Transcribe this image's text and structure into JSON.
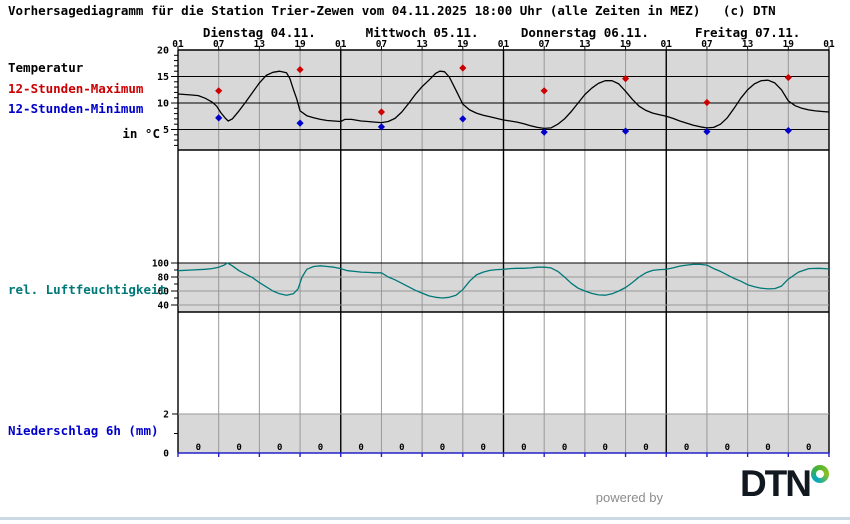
{
  "title": "Vorhersagediagramm für die Station Trier-Zewen vom 04.11.2025 18:00 Uhr (alle Zeiten in MEZ)   (c) DTN",
  "days": [
    "Dienstag 04.11.",
    "Mittwoch 05.11.",
    "Donnerstag 06.11.",
    "Freitag 07.11."
  ],
  "time_ticks": [
    "01",
    "07",
    "13",
    "19",
    "01",
    "07",
    "13",
    "19",
    "01",
    "07",
    "13",
    "19",
    "01",
    "07",
    "13",
    "19",
    "01"
  ],
  "panels": {
    "temperature": {
      "label": "Temperatur",
      "legend_max": "12-Stunden-Maximum",
      "legend_min": "12-Stunden-Minimum",
      "unit_label": "in °C",
      "yticks": [
        20,
        15,
        10,
        5
      ]
    },
    "humidity": {
      "label": "rel. Luftfeuchtigkeit",
      "yticks": [
        100,
        80,
        60,
        40
      ]
    },
    "precipitation": {
      "label": "Niederschlag 6h (mm)",
      "yticks": [
        2,
        0
      ]
    }
  },
  "footer": {
    "powered_by": "powered by",
    "logo_text": "DTN"
  },
  "colors": {
    "panel_bg": "#d8d8d8",
    "grid_gray": "#999999",
    "grid_black": "#000000",
    "temp_curve": "#000000",
    "max_marker": "#cc0000",
    "min_marker": "#0000cc",
    "humidity_curve": "#007878",
    "precip_axis": "#2222cc",
    "divider": "#ccd9e2"
  },
  "chart_data": {
    "type": "line",
    "x_axis": {
      "unit": "hours since Dienstag 01:00 MEZ",
      "range": [
        0,
        96
      ],
      "tick_step_hours": 6,
      "day_boundaries_hours": [
        0,
        24,
        48,
        72,
        96
      ]
    },
    "temperature": {
      "ylabel": "in °C",
      "ylim_labels": [
        20,
        5
      ],
      "series": [
        [
          0,
          11.7
        ],
        [
          2,
          11.5
        ],
        [
          3,
          11.4
        ],
        [
          4,
          10.9
        ],
        [
          5,
          10.2
        ],
        [
          5.7,
          9.4
        ],
        [
          6.3,
          8.2
        ],
        [
          7,
          7.1
        ],
        [
          7.4,
          6.6
        ],
        [
          8,
          7.0
        ],
        [
          9,
          8.5
        ],
        [
          10,
          10.2
        ],
        [
          11,
          12.0
        ],
        [
          12,
          13.8
        ],
        [
          13,
          15.2
        ],
        [
          14,
          15.8
        ],
        [
          15,
          16.0
        ],
        [
          16,
          15.7
        ],
        [
          16.5,
          14.6
        ],
        [
          17,
          12.6
        ],
        [
          17.5,
          10.8
        ],
        [
          18,
          8.5
        ],
        [
          19,
          7.6
        ],
        [
          20,
          7.2
        ],
        [
          21,
          6.9
        ],
        [
          22,
          6.7
        ],
        [
          23,
          6.6
        ],
        [
          24,
          6.5
        ],
        [
          24.6,
          6.9
        ],
        [
          25.6,
          6.9
        ],
        [
          27,
          6.6
        ],
        [
          28,
          6.5
        ],
        [
          29,
          6.4
        ],
        [
          30,
          6.3
        ],
        [
          31,
          6.5
        ],
        [
          32,
          7.1
        ],
        [
          33,
          8.3
        ],
        [
          34,
          9.9
        ],
        [
          35,
          11.6
        ],
        [
          36,
          13.1
        ],
        [
          37,
          14.3
        ],
        [
          38,
          15.6
        ],
        [
          38.6,
          16.0
        ],
        [
          39.3,
          15.9
        ],
        [
          40,
          14.9
        ],
        [
          41,
          12.4
        ],
        [
          42,
          9.8
        ],
        [
          43,
          8.7
        ],
        [
          44,
          8.1
        ],
        [
          45,
          7.7
        ],
        [
          46,
          7.4
        ],
        [
          47,
          7.1
        ],
        [
          48,
          6.8
        ],
        [
          49,
          6.6
        ],
        [
          50,
          6.4
        ],
        [
          51,
          6.1
        ],
        [
          52,
          5.7
        ],
        [
          53,
          5.4
        ],
        [
          54,
          5.2
        ],
        [
          55,
          5.3
        ],
        [
          56,
          6.0
        ],
        [
          57,
          7.0
        ],
        [
          58,
          8.4
        ],
        [
          59,
          10.0
        ],
        [
          60,
          11.6
        ],
        [
          61,
          12.8
        ],
        [
          62,
          13.7
        ],
        [
          63,
          14.2
        ],
        [
          64,
          14.2
        ],
        [
          65,
          13.6
        ],
        [
          66,
          12.2
        ],
        [
          67,
          10.7
        ],
        [
          68,
          9.4
        ],
        [
          69,
          8.6
        ],
        [
          70,
          8.1
        ],
        [
          71,
          7.8
        ],
        [
          72,
          7.5
        ],
        [
          73,
          7.1
        ],
        [
          74,
          6.6
        ],
        [
          75,
          6.2
        ],
        [
          76,
          5.8
        ],
        [
          77,
          5.5
        ],
        [
          78,
          5.3
        ],
        [
          79,
          5.4
        ],
        [
          80,
          6.0
        ],
        [
          81,
          7.2
        ],
        [
          82,
          9.0
        ],
        [
          83,
          10.9
        ],
        [
          84,
          12.5
        ],
        [
          85,
          13.6
        ],
        [
          86,
          14.2
        ],
        [
          87,
          14.3
        ],
        [
          88,
          13.8
        ],
        [
          89,
          12.5
        ],
        [
          90,
          10.4
        ],
        [
          91,
          9.5
        ],
        [
          92,
          9.0
        ],
        [
          93,
          8.7
        ],
        [
          94,
          8.5
        ],
        [
          95,
          8.4
        ],
        [
          96,
          8.3
        ]
      ],
      "max_markers": [
        [
          6,
          12.3
        ],
        [
          18,
          16.3
        ],
        [
          30,
          8.3
        ],
        [
          42,
          16.6
        ],
        [
          54,
          12.3
        ],
        [
          66,
          14.6
        ],
        [
          78,
          10.1
        ],
        [
          90,
          14.8
        ]
      ],
      "min_markers": [
        [
          6,
          7.2
        ],
        [
          18,
          6.2
        ],
        [
          30,
          5.5
        ],
        [
          42,
          7.0
        ],
        [
          54,
          4.5
        ],
        [
          66,
          4.7
        ],
        [
          78,
          4.6
        ],
        [
          90,
          4.8
        ]
      ]
    },
    "humidity": {
      "ylabel": "rel. Luftfeuchtigkeit (%)",
      "series": [
        [
          0,
          89
        ],
        [
          2,
          90
        ],
        [
          4,
          91
        ],
        [
          5,
          92
        ],
        [
          6,
          94
        ],
        [
          6.8,
          97
        ],
        [
          7.3,
          100
        ],
        [
          8,
          96
        ],
        [
          9,
          89
        ],
        [
          10,
          84
        ],
        [
          11,
          79
        ],
        [
          12,
          72
        ],
        [
          13,
          66
        ],
        [
          14,
          60
        ],
        [
          15,
          56
        ],
        [
          16,
          54
        ],
        [
          17,
          56
        ],
        [
          17.7,
          63
        ],
        [
          18.3,
          80
        ],
        [
          19,
          91
        ],
        [
          20,
          95
        ],
        [
          21,
          96
        ],
        [
          22,
          95
        ],
        [
          23,
          94
        ],
        [
          24,
          92
        ],
        [
          25,
          89
        ],
        [
          26,
          88
        ],
        [
          27,
          87
        ],
        [
          28,
          86.5
        ],
        [
          29,
          86
        ],
        [
          30,
          86
        ],
        [
          31,
          80
        ],
        [
          32,
          76
        ],
        [
          33,
          71
        ],
        [
          34,
          66
        ],
        [
          35,
          61
        ],
        [
          36,
          57
        ],
        [
          37,
          53
        ],
        [
          38,
          51
        ],
        [
          39,
          50
        ],
        [
          40,
          51
        ],
        [
          41,
          54
        ],
        [
          42,
          62
        ],
        [
          43,
          74
        ],
        [
          44,
          83
        ],
        [
          45,
          87
        ],
        [
          46,
          89.5
        ],
        [
          47,
          90.5
        ],
        [
          48,
          91
        ],
        [
          49,
          92
        ],
        [
          50,
          92.5
        ],
        [
          51,
          92.5
        ],
        [
          52,
          93
        ],
        [
          53,
          94
        ],
        [
          54,
          94
        ],
        [
          55,
          93
        ],
        [
          56,
          88
        ],
        [
          57,
          80
        ],
        [
          58,
          71
        ],
        [
          59,
          64
        ],
        [
          60,
          60
        ],
        [
          61,
          56.5
        ],
        [
          62,
          54.5
        ],
        [
          63,
          54
        ],
        [
          64,
          56
        ],
        [
          65,
          60
        ],
        [
          66,
          65
        ],
        [
          67,
          72
        ],
        [
          68,
          80
        ],
        [
          69,
          86
        ],
        [
          70,
          89.5
        ],
        [
          71,
          90.5
        ],
        [
          72,
          91
        ],
        [
          73,
          93
        ],
        [
          74,
          95.5
        ],
        [
          75,
          97
        ],
        [
          76,
          98
        ],
        [
          77,
          98
        ],
        [
          78,
          97
        ],
        [
          79,
          92
        ],
        [
          80,
          88
        ],
        [
          81,
          83
        ],
        [
          82,
          78
        ],
        [
          83,
          74
        ],
        [
          84,
          69
        ],
        [
          85,
          66
        ],
        [
          86,
          64
        ],
        [
          87,
          63
        ],
        [
          88,
          63.5
        ],
        [
          89,
          67
        ],
        [
          90,
          77
        ],
        [
          91.5,
          87
        ],
        [
          93,
          92
        ],
        [
          94.5,
          92.5
        ],
        [
          96,
          91.5
        ]
      ]
    },
    "precipitation": {
      "ylabel": "Niederschlag 6h (mm)",
      "interval_hours": 6,
      "values": [
        0,
        0,
        0,
        0,
        0,
        0,
        0,
        0,
        0,
        0,
        0,
        0,
        0,
        0,
        0,
        0
      ]
    }
  }
}
